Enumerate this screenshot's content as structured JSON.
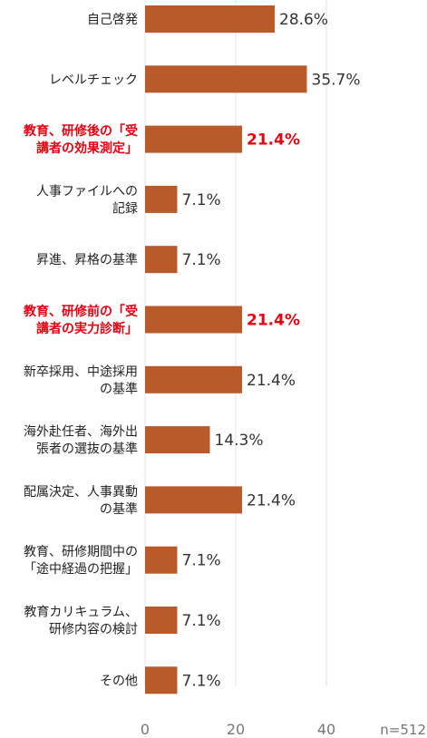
{
  "chart_data": {
    "type": "bar",
    "orientation": "horizontal",
    "categories": [
      [
        "自己啓発"
      ],
      [
        "レベルチェック"
      ],
      [
        "教育、研修後の「受",
        "講者の効果測定」"
      ],
      [
        "人事ファイルへの",
        "記録"
      ],
      [
        "昇進、昇格の基準"
      ],
      [
        "教育、研修前の「受",
        "講者の実力診断」"
      ],
      [
        "新卒採用、中途採用",
        "の基準"
      ],
      [
        "海外赴任者、海外出",
        "張者の選抜の基準"
      ],
      [
        "配属決定、人事異動",
        "の基準"
      ],
      [
        "教育、研修期間中の",
        "「途中経過の把握」"
      ],
      [
        "教育カリキュラム、",
        "研修内容の検討"
      ],
      [
        "その他"
      ]
    ],
    "values": [
      28.6,
      35.7,
      21.4,
      7.1,
      7.1,
      21.4,
      21.4,
      14.3,
      21.4,
      7.1,
      7.1,
      7.1
    ],
    "value_labels": [
      "28.6%",
      "35.7%",
      "21.4%",
      "7.1%",
      "7.1%",
      "21.4%",
      "21.4%",
      "14.3%",
      "21.4%",
      "7.1%",
      "7.1%",
      "7.1%"
    ],
    "highlighted": [
      false,
      false,
      true,
      false,
      false,
      true,
      false,
      false,
      false,
      false,
      false,
      false
    ],
    "xticks": [
      0,
      20,
      40
    ],
    "xlim": [
      0,
      40
    ],
    "grid": true,
    "note": "n=512",
    "colors": {
      "bar": "#b95a2b",
      "highlight_text": "#e60012"
    }
  }
}
